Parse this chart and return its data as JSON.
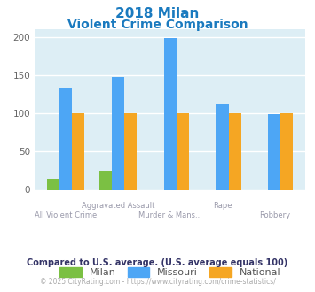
{
  "title_line1": "2018 Milan",
  "title_line2": "Violent Crime Comparison",
  "categories": [
    "All Violent Crime",
    "Aggravated Assault",
    "Murder & Mans...",
    "Rape",
    "Robbery"
  ],
  "cat_top": [
    "",
    "Aggravated Assault",
    "",
    "Rape",
    ""
  ],
  "cat_bot": [
    "All Violent Crime",
    "",
    "Murder & Mans...",
    "",
    "Robbery"
  ],
  "milan_values": [
    15,
    25,
    0,
    0,
    0
  ],
  "missouri_values": [
    132,
    148,
    199,
    113,
    99
  ],
  "national_values": [
    100,
    100,
    100,
    100,
    100
  ],
  "milan_color": "#7bc043",
  "missouri_color": "#4da6f5",
  "national_color": "#f5a623",
  "ylim": [
    0,
    210
  ],
  "yticks": [
    0,
    50,
    100,
    150,
    200
  ],
  "background_color": "#ddeef5",
  "title_color": "#1a7abf",
  "xtick_color": "#9999aa",
  "ytick_color": "#666666",
  "footer_note": "Compared to U.S. average. (U.S. average equals 100)",
  "footer_copyright": "© 2025 CityRating.com - https://www.cityrating.com/crime-statistics/",
  "footer_note_color": "#333366",
  "footer_copy_color": "#aaaaaa",
  "footer_link_color": "#4da6f5",
  "legend_labels": [
    "Milan",
    "Missouri",
    "National"
  ],
  "legend_text_color": "#555555"
}
